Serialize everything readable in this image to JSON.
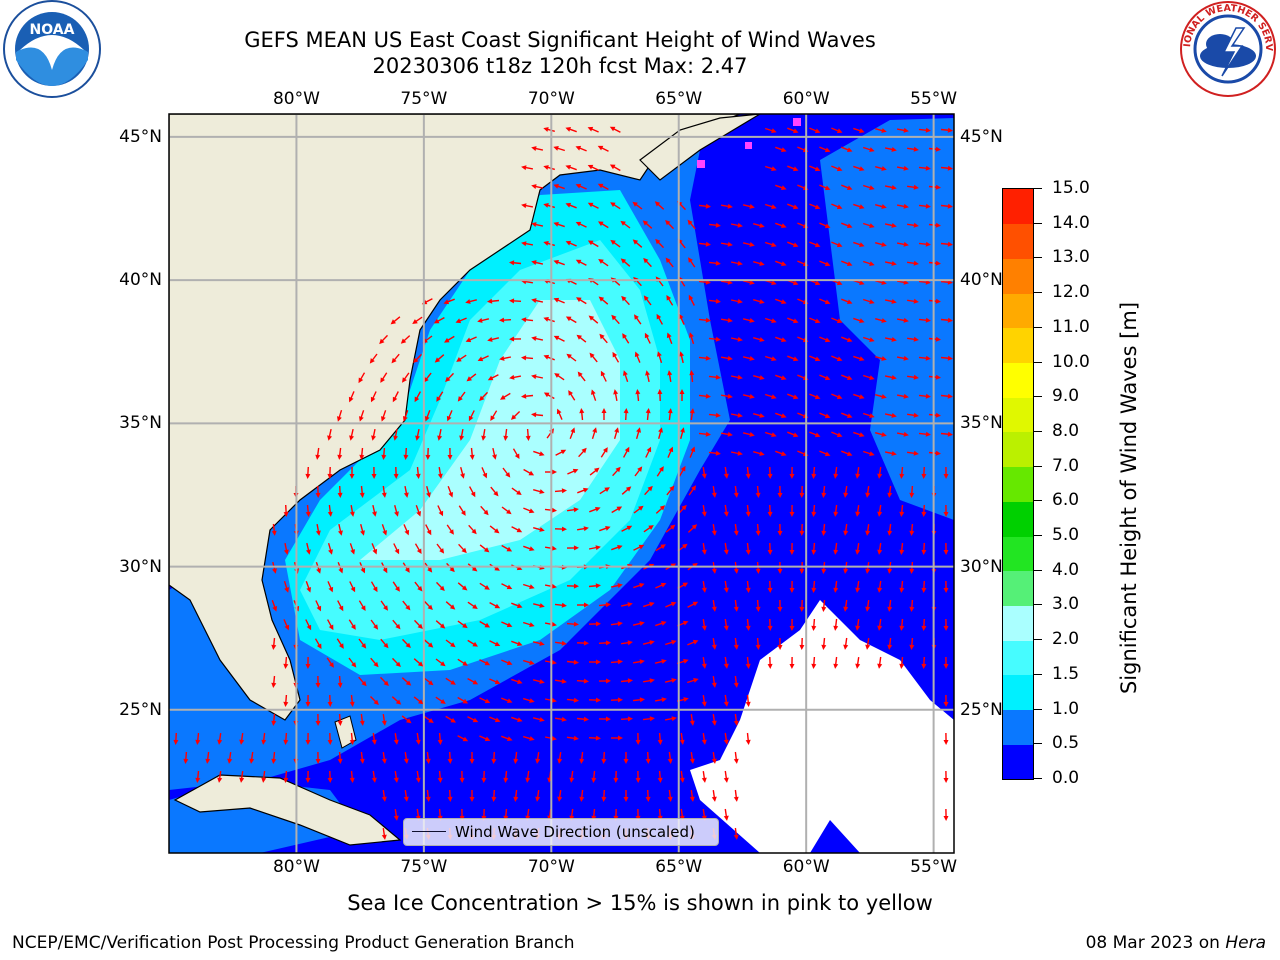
{
  "title_line1": "GEFS MEAN US East Coast Significant Height of Wind Waves",
  "title_line2": "20230306 t18z 120h fcst   Max: 2.47",
  "map": {
    "lon_labels": [
      "80°W",
      "75°W",
      "70°W",
      "65°W",
      "60°W",
      "55°W"
    ],
    "lat_labels": [
      "45°N",
      "40°N",
      "35°N",
      "30°N",
      "25°N"
    ],
    "lon_values": [
      -80,
      -75,
      -70,
      -65,
      -60,
      -55
    ],
    "lat_values": [
      45,
      40,
      35,
      30,
      25
    ],
    "extent": {
      "lon_min": -85,
      "lon_max": -54.2,
      "lat_min": 20,
      "lat_max": 45.8
    },
    "legend_label": "Wind Wave Direction (unscaled)",
    "colors": {
      "land": "#eeecda",
      "arrow": "#ff0000",
      "grid": "#b0b0b0"
    }
  },
  "colorbar": {
    "title": "Significant Height of Wind Waves [m]",
    "ticks": [
      "0.0",
      "0.5",
      "1.0",
      "1.5",
      "2.0",
      "3.0",
      "4.0",
      "5.0",
      "6.0",
      "7.0",
      "8.0",
      "9.0",
      "10.0",
      "11.0",
      "12.0",
      "13.0",
      "14.0",
      "15.0"
    ],
    "colors": [
      "#0000ff",
      "#0a78ff",
      "#00f0ff",
      "#46fcff",
      "#aaffff",
      "#55f077",
      "#22e522",
      "#00d000",
      "#66e800",
      "#bbf000",
      "#e0f800",
      "#ffff00",
      "#ffd300",
      "#ffaa00",
      "#ff8000",
      "#ff5000",
      "#ff2000"
    ]
  },
  "ice_note": "Sea Ice Concentration > 15% is shown in pink to yellow",
  "footer": {
    "left": "NCEP/EMC/Verification Post Processing Product Generation Branch",
    "date": "08 Mar 2023 on",
    "machine": "Hera"
  },
  "logos": {
    "noaa": "NOAA",
    "nws": "NATIONAL WEATHER SERVICE"
  }
}
